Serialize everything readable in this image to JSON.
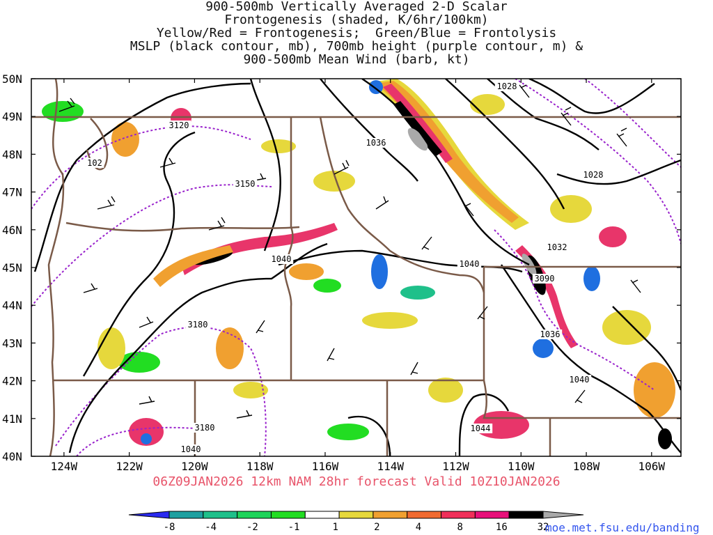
{
  "title": {
    "line1": "900-500mb Vertically Averaged 2-D Scalar",
    "line2": "Frontogenesis (shaded, K/6hr/100km)",
    "line3": "Yellow/Red = Frontogenesis;  Green/Blue = Frontolysis",
    "line4": "MSLP (black contour, mb), 700mb height (purple contour, m) &",
    "line5": "900-500mb Mean Wind (barb, kt)"
  },
  "map": {
    "lat_labels": [
      "50N",
      "49N",
      "48N",
      "47N",
      "46N",
      "45N",
      "44N",
      "43N",
      "42N",
      "41N",
      "40N"
    ],
    "lon_labels": [
      "124W",
      "122W",
      "120W",
      "118W",
      "116W",
      "114W",
      "112W",
      "110W",
      "108W",
      "106W"
    ],
    "lat_range": [
      40,
      50
    ],
    "lon_range": [
      -125.0,
      -105.1
    ],
    "contour_labels": {
      "mslp": [
        "1028",
        "1036",
        "1028",
        "102",
        "1032",
        "1040",
        "1040",
        "1036",
        "1040",
        "1044",
        "1040"
      ],
      "height": [
        "3120",
        "3150",
        "3180",
        "3090",
        "3180"
      ]
    }
  },
  "colors": {
    "mslp": "#000000",
    "height": "#9922cc",
    "borders": "#7a5a48",
    "frontogenesis": [
      "#e6d83c",
      "#f0a030",
      "#e86a44",
      "#e8356a",
      "#000000",
      "#a9a9a9"
    ],
    "frontolysis": [
      "#22dd22",
      "#30c890",
      "#10b9a0",
      "#1f6fe0",
      "#2020d0"
    ]
  },
  "valid_time": "06Z09JAN2026 12km NAM 28hr forecast Valid 10Z10JAN2026",
  "colorbar": {
    "labels": [
      "-8",
      "-4",
      "-2",
      "-1",
      "1",
      "2",
      "4",
      "8",
      "16",
      "32"
    ],
    "colors": [
      "#2a2af0",
      "#1ea0a0",
      "#1fc08a",
      "#1ed45a",
      "#22dd22",
      "#ffffff",
      "#e6d83c",
      "#f0a030",
      "#f06a30",
      "#f0305a",
      "#e8107a",
      "#000000",
      "#a9a9a9"
    ]
  },
  "credit": "moe.met.fsu.edu/banding"
}
